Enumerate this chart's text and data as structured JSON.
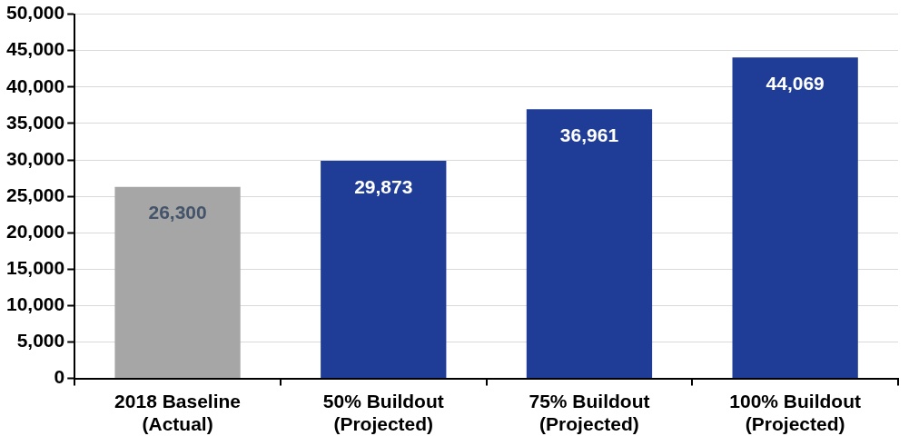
{
  "chart_data": {
    "type": "bar",
    "categories": [
      "2018 Baseline (Actual)",
      "50% Buildout (Projected)",
      "75% Buildout (Projected)",
      "100% Buildout (Projected)"
    ],
    "values": [
      26300,
      29873,
      36961,
      44069
    ],
    "value_labels": [
      "26,300",
      "29,873",
      "36,961",
      "44,069"
    ],
    "colors": [
      "#a6a6a6",
      "#1f3c96",
      "#1f3c96",
      "#1f3c96"
    ],
    "ylim": [
      0,
      50000
    ],
    "yticks": [
      0,
      {
        "value": 5000,
        "label": "5,000"
      },
      {
        "value": 10000,
        "label": "10,000"
      },
      {
        "value": 15000,
        "label": "15,000"
      },
      {
        "value": 20000,
        "label": "20,000"
      },
      {
        "value": 25000,
        "label": "25,000"
      },
      {
        "value": 30000,
        "label": "30,000"
      },
      {
        "value": 35000,
        "label": "35,000"
      },
      {
        "value": 40000,
        "label": "40,000"
      },
      {
        "value": 45000,
        "label": "45,000"
      },
      {
        "value": 50000,
        "label": "50,000"
      }
    ],
    "grid": "y",
    "legend": false
  }
}
